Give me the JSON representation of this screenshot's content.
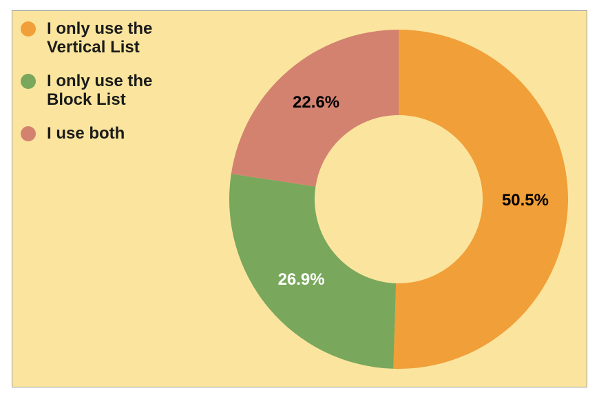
{
  "chart_data": {
    "type": "donut",
    "categories": [
      "I only use the Vertical List",
      "I only use the Block List",
      "I use both"
    ],
    "values": [
      50.5,
      26.9,
      22.6
    ],
    "value_labels": [
      "50.5%",
      "26.9%",
      "22.6%"
    ],
    "colors": [
      "#f19f38",
      "#79a75c",
      "#d48270"
    ],
    "label_colors": [
      "#000000",
      "#ffffff",
      "#000000"
    ],
    "legend": "top-left"
  }
}
